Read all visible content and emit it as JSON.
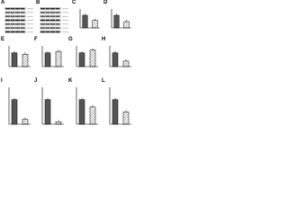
{
  "panels": [
    {
      "label": "A"
    },
    {
      "label": "B"
    },
    {
      "label": "C",
      "values": [
        1,
        0.6
      ],
      "ylim": [
        0,
        1.5
      ]
    },
    {
      "label": "D",
      "values": [
        1,
        0.5
      ],
      "ylim": [
        0,
        1.5
      ]
    },
    {
      "label": "E",
      "values": [
        1,
        0.9
      ],
      "ylim": [
        0,
        1.5
      ]
    },
    {
      "label": "F",
      "values": [
        1,
        1.1
      ],
      "ylim": [
        0,
        1.5
      ]
    },
    {
      "label": "G",
      "values": [
        1,
        1.2
      ],
      "ylim": [
        0,
        1.5
      ]
    },
    {
      "label": "H",
      "values": [
        1,
        0.4
      ],
      "ylim": [
        0,
        1.5
      ]
    },
    {
      "label": "I",
      "values": [
        1,
        0.2
      ],
      "ylim": [
        0,
        1.5
      ]
    },
    {
      "label": "J",
      "values": [
        1,
        0.1
      ],
      "ylim": [
        0,
        1.5
      ]
    },
    {
      "label": "K",
      "values": [
        1,
        0.7
      ],
      "ylim": [
        0,
        1.5
      ]
    },
    {
      "label": "L",
      "values": [
        1,
        0.5
      ],
      "ylim": [
        0,
        1.5
      ]
    }
  ]
}
